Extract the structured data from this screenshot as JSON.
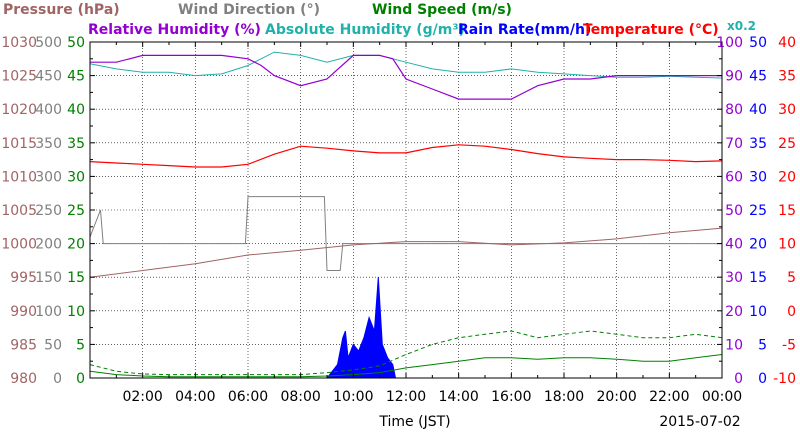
{
  "chart_data": {
    "type": "line",
    "date": "2015-07-02",
    "xlabel": "Time (JST)",
    "x_ticks": [
      "02:00",
      "04:00",
      "06:00",
      "08:00",
      "10:00",
      "12:00",
      "14:00",
      "16:00",
      "18:00",
      "20:00",
      "22:00",
      "00:00"
    ],
    "x_range_hours": [
      0,
      24
    ],
    "grid": true,
    "colors": {
      "pressure": "#a06464",
      "wind_direction": "#808080",
      "wind_speed": "#008000",
      "relative_humidity": "#9400d3",
      "absolute_humidity": "#20b2aa",
      "rain_rate": "#0000ff",
      "temperature": "#ff0000"
    },
    "legend": {
      "pressure_label": "Pressure (hPa)",
      "wind_direction_label": "Wind Direction (°)",
      "wind_speed_label": "Wind Speed (m/s)",
      "relative_humidity_label": "Relative Humidity (%)",
      "absolute_humidity_label": "Absolute Humidity (g/m³)",
      "rain_rate_label": "Rain Rate(mm/h)",
      "temperature_label": "Temperature (°C)",
      "scale_note": "x0.2"
    },
    "axes": {
      "pressure": {
        "ticks": [
          "980",
          "985",
          "990",
          "995",
          "1000",
          "1005",
          "1010",
          "1015",
          "1020",
          "1025",
          "1030"
        ],
        "range": [
          980,
          1030
        ]
      },
      "wind_direction": {
        "ticks": [
          "0",
          "50",
          "100",
          "150",
          "200",
          "250",
          "300",
          "350",
          "400",
          "450",
          "500"
        ],
        "range": [
          0,
          500
        ]
      },
      "wind_speed": {
        "ticks": [
          "0",
          "5",
          "10",
          "15",
          "20",
          "25",
          "30",
          "35",
          "40",
          "45",
          "50"
        ],
        "range": [
          0,
          50
        ]
      },
      "relative_humidity": {
        "ticks": [
          "0",
          "10",
          "20",
          "30",
          "40",
          "50",
          "60",
          "70",
          "80",
          "90",
          "100"
        ],
        "range": [
          0,
          100
        ]
      },
      "rain_rate": {
        "ticks": [
          "0",
          "5",
          "10",
          "15",
          "20",
          "25",
          "30",
          "35",
          "40",
          "45",
          "50"
        ],
        "range": [
          0,
          50
        ]
      },
      "temperature": {
        "ticks": [
          "-10",
          "-5",
          "0",
          "5",
          "10",
          "15",
          "20",
          "25",
          "30",
          "35",
          "40"
        ],
        "range": [
          -10,
          40
        ]
      }
    },
    "series": [
      {
        "key": "pressure",
        "unit": "hPa",
        "x": [
          0,
          2,
          4,
          6,
          8,
          10,
          12,
          14,
          16,
          18,
          20,
          22,
          24
        ],
        "values": [
          995.0,
          996.0,
          997.0,
          998.3,
          999.0,
          999.8,
          1000.3,
          1000.3,
          999.8,
          1000.1,
          1000.7,
          1001.6,
          1002.3
        ]
      },
      {
        "key": "temperature",
        "unit": "°C",
        "x": [
          0,
          1,
          2,
          3,
          4,
          5,
          6,
          7,
          8,
          9,
          10,
          11,
          12,
          13,
          14,
          15,
          16,
          17,
          18,
          19,
          20,
          21,
          22,
          23,
          24
        ],
        "values": [
          22.2,
          22.0,
          21.8,
          21.6,
          21.4,
          21.4,
          21.8,
          23.3,
          24.5,
          24.2,
          23.8,
          23.5,
          23.5,
          24.3,
          24.7,
          24.5,
          24.0,
          23.4,
          22.9,
          22.7,
          22.5,
          22.5,
          22.4,
          22.2,
          22.3
        ]
      },
      {
        "key": "relative_humidity",
        "unit": "%",
        "x": [
          0,
          1,
          2,
          3,
          4,
          5,
          6,
          6.5,
          7,
          8,
          9,
          10,
          11,
          11.5,
          12,
          13,
          14,
          15,
          16,
          16.5,
          17,
          18,
          19,
          20,
          21,
          22,
          23,
          24
        ],
        "values": [
          94,
          94,
          96,
          96,
          96,
          96,
          95,
          93,
          90,
          87,
          89,
          96,
          96,
          95,
          89,
          86,
          83,
          83,
          83,
          85,
          87,
          89,
          89,
          90,
          90,
          90,
          90,
          90
        ]
      },
      {
        "key": "absolute_humidity_x0.2",
        "unit": "g/m³ x0.2",
        "x": [
          0,
          1,
          2,
          3,
          4,
          5,
          6,
          7,
          8,
          9,
          10,
          11,
          12,
          13,
          14,
          15,
          16,
          17,
          18,
          19,
          20,
          21,
          22,
          23,
          24
        ],
        "values": [
          93.5,
          92,
          91,
          91,
          90,
          90.5,
          93,
          97,
          96,
          94,
          96,
          96,
          94,
          92,
          91,
          91,
          92,
          91,
          90.5,
          90,
          89.5,
          89.5,
          89.8,
          89.5,
          89.3
        ]
      },
      {
        "key": "wind_direction",
        "unit": "°",
        "x": [
          0,
          0.4,
          0.5,
          5.9,
          6.0,
          8.9,
          9.0,
          9.5,
          9.6,
          24
        ],
        "values": [
          210,
          250,
          200,
          200,
          270,
          270,
          160,
          160,
          200,
          200
        ]
      },
      {
        "key": "wind_speed_mean",
        "unit": "m/s",
        "x": [
          0,
          1,
          2,
          3,
          4,
          5,
          6,
          7,
          8,
          9,
          10,
          11,
          12,
          13,
          14,
          15,
          16,
          17,
          18,
          19,
          20,
          21,
          22,
          23,
          24
        ],
        "values": [
          1.0,
          0.5,
          0.3,
          0.2,
          0.2,
          0.2,
          0.2,
          0.2,
          0.2,
          0.3,
          0.5,
          0.8,
          1.5,
          2.0,
          2.5,
          3.0,
          3.0,
          2.8,
          3.0,
          3.0,
          2.8,
          2.5,
          2.5,
          3.0,
          3.5
        ]
      },
      {
        "key": "wind_speed_gust",
        "unit": "m/s",
        "x": [
          0,
          1,
          2,
          3,
          4,
          5,
          6,
          7,
          8,
          9,
          10,
          11,
          12,
          13,
          14,
          15,
          16,
          17,
          18,
          19,
          20,
          21,
          22,
          23,
          24
        ],
        "values": [
          2.0,
          1.0,
          0.6,
          0.5,
          0.5,
          0.5,
          0.5,
          0.5,
          0.5,
          0.8,
          1.2,
          1.8,
          3.5,
          5.0,
          6.0,
          6.5,
          7.0,
          6.0,
          6.5,
          7.0,
          6.5,
          6.0,
          6.0,
          6.5,
          6.0
        ]
      },
      {
        "key": "rain_rate",
        "unit": "mm/h",
        "x": [
          9.0,
          9.4,
          9.6,
          9.7,
          9.8,
          10.0,
          10.2,
          10.4,
          10.6,
          10.8,
          10.95,
          11.1,
          11.3,
          11.5,
          11.6
        ],
        "values": [
          0,
          2,
          6,
          7,
          3,
          5,
          4,
          6,
          9,
          7,
          15,
          5,
          3,
          2,
          0
        ]
      }
    ]
  }
}
